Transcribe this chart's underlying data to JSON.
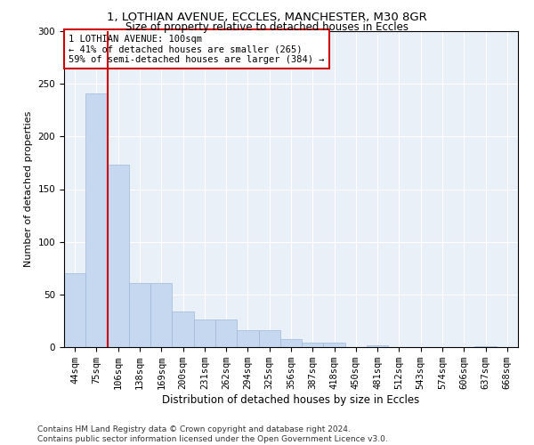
{
  "title1": "1, LOTHIAN AVENUE, ECCLES, MANCHESTER, M30 8GR",
  "title2": "Size of property relative to detached houses in Eccles",
  "xlabel": "Distribution of detached houses by size in Eccles",
  "ylabel": "Number of detached properties",
  "categories": [
    "44sqm",
    "75sqm",
    "106sqm",
    "138sqm",
    "169sqm",
    "200sqm",
    "231sqm",
    "262sqm",
    "294sqm",
    "325sqm",
    "356sqm",
    "387sqm",
    "418sqm",
    "450sqm",
    "481sqm",
    "512sqm",
    "543sqm",
    "574sqm",
    "606sqm",
    "637sqm",
    "668sqm"
  ],
  "values": [
    70,
    241,
    173,
    61,
    61,
    34,
    26,
    26,
    16,
    16,
    8,
    4,
    4,
    0,
    2,
    0,
    0,
    0,
    0,
    1,
    0
  ],
  "bar_color": "#c5d8f0",
  "bar_edgecolor": "#a0b8d8",
  "vline_x": 1.5,
  "vline_color": "#cc0000",
  "annotation_text": "1 LOTHIAN AVENUE: 100sqm\n← 41% of detached houses are smaller (265)\n59% of semi-detached houses are larger (384) →",
  "annotation_box_color": "white",
  "annotation_box_edgecolor": "#cc0000",
  "ylim": [
    0,
    300
  ],
  "yticks": [
    0,
    50,
    100,
    150,
    200,
    250,
    300
  ],
  "background_color": "#eaf0f8",
  "footer": "Contains HM Land Registry data © Crown copyright and database right 2024.\nContains public sector information licensed under the Open Government Licence v3.0.",
  "title1_fontsize": 9.5,
  "title2_fontsize": 8.5,
  "xlabel_fontsize": 8.5,
  "ylabel_fontsize": 8,
  "tick_fontsize": 7.5,
  "annotation_fontsize": 7.5,
  "footer_fontsize": 6.5
}
